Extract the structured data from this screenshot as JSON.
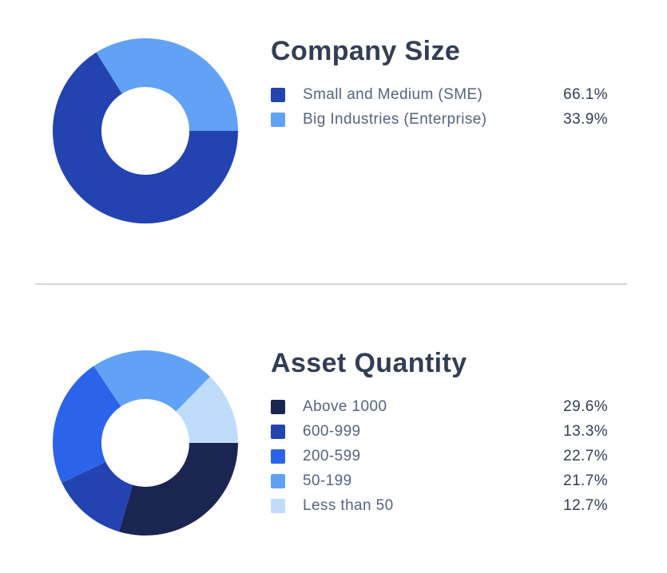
{
  "chart_data": [
    {
      "type": "pie",
      "subtype": "donut",
      "title": "Company Size",
      "categories": [
        "Small and Medium (SME)",
        "Big Industries (Enterprise)"
      ],
      "values": [
        66.1,
        33.9
      ],
      "value_labels": [
        "66.1%",
        "33.9%"
      ],
      "colors": [
        "#2243b0",
        "#61a2f6"
      ],
      "start_angle_deg": 90,
      "direction": "clockwise",
      "inner_radius_ratio": 0.474,
      "legend_position": "right"
    },
    {
      "type": "pie",
      "subtype": "donut",
      "title": "Asset Quantity",
      "categories": [
        "Above 1000",
        "600-999",
        "200-599",
        "50-199",
        "Less than 50"
      ],
      "values": [
        29.6,
        13.3,
        22.7,
        21.7,
        12.7
      ],
      "value_labels": [
        "29.6%",
        "13.3%",
        "22.7%",
        "21.7%",
        "12.7%"
      ],
      "colors": [
        "#1a2552",
        "#2243b0",
        "#2b64ea",
        "#61a2f6",
        "#c0dcfb"
      ],
      "start_angle_deg": 90,
      "direction": "clockwise",
      "inner_radius_ratio": 0.474,
      "legend_position": "right"
    }
  ],
  "styles": {
    "title_color": "#323e54",
    "legend_label_color": "#55647f",
    "legend_value_color": "#323e54",
    "divider_color": "#d3d5dc",
    "background": "#ffffff"
  }
}
